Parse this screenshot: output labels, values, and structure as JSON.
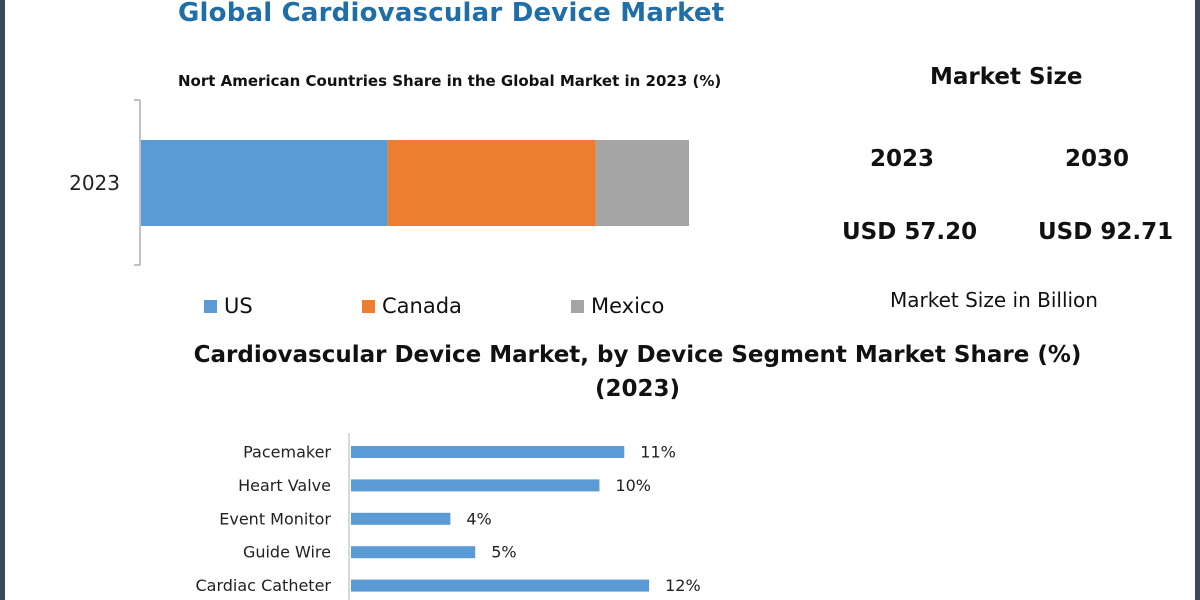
{
  "title": "Global Cardiovascular  Device Market",
  "market_size": {
    "heading": "Market Size",
    "years": [
      "2023",
      "2030"
    ],
    "values": [
      "USD 57.20",
      "USD 92.71"
    ],
    "unit_label": "Market Size in Billion"
  },
  "chart_data": [
    {
      "type": "bar",
      "orientation": "horizontal",
      "stacked": true,
      "title": "Nort American Countries Share in the Global Market in 2023  (%)",
      "categories": [
        "2023"
      ],
      "series": [
        {
          "name": "US",
          "values": [
            45
          ],
          "color": "#5b9bd5"
        },
        {
          "name": "Canada",
          "values": [
            38
          ],
          "color": "#ed7d31"
        },
        {
          "name": "Mexico",
          "values": [
            17
          ],
          "color": "#a5a5a5"
        }
      ],
      "legend_position": "bottom",
      "grid": false
    },
    {
      "type": "bar",
      "orientation": "horizontal",
      "title": "Cardiovascular Device Market, by Device Segment Market Share (%) (2023)",
      "title_lines": [
        "Cardiovascular Device Market, by Device Segment Market Share (%)",
        "(2023)"
      ],
      "categories": [
        "Pacemaker",
        "Heart Valve",
        "Event Monitor",
        "Guide Wire",
        "Cardiac Catheter"
      ],
      "values": [
        11,
        10,
        4,
        5,
        12
      ],
      "data_labels": [
        "11%",
        "10%",
        "4%",
        "5%",
        "12%"
      ],
      "color": "#5b9bd5",
      "xlim": [
        0,
        12.8
      ],
      "grid": false
    }
  ]
}
